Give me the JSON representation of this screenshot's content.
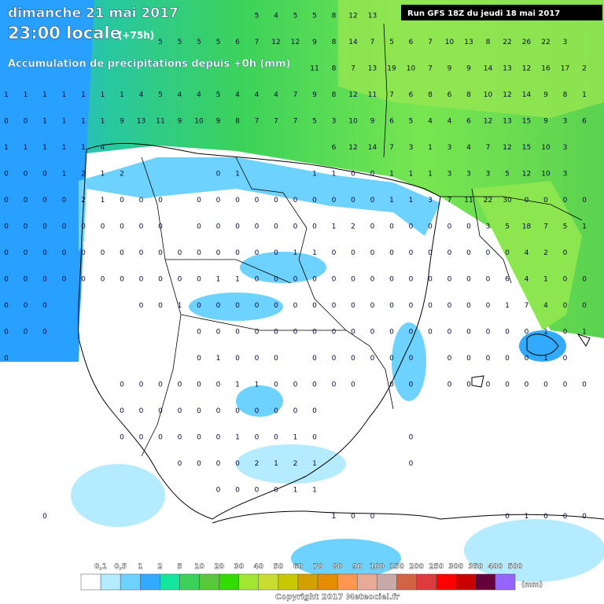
{
  "header": {
    "date": "dimanche 21 mai 2017",
    "time": "23:00 locale",
    "lead": "(+75h)",
    "subtitle": "Accumulation de précipitations depuis +0h (mm)",
    "run": "Run GFS 18Z du jeudi 18 mai 2017"
  },
  "grid_values": [
    [
      null,
      null,
      null,
      null,
      null,
      null,
      null,
      null,
      null,
      null,
      null,
      null,
      null,
      "5",
      "4",
      "5",
      "5",
      "8",
      "12",
      "13",
      null,
      null,
      null,
      null,
      null,
      null,
      null,
      null,
      null,
      null,
      null
    ],
    [
      null,
      null,
      null,
      null,
      null,
      null,
      null,
      null,
      "5",
      "5",
      "5",
      "5",
      "6",
      "7",
      "12",
      "12",
      "9",
      "8",
      "14",
      "7",
      "5",
      "6",
      "7",
      "10",
      "13",
      "8",
      "22",
      "26",
      "22",
      "3",
      null
    ],
    [
      null,
      null,
      null,
      null,
      null,
      null,
      null,
      null,
      null,
      null,
      null,
      null,
      null,
      null,
      null,
      null,
      "11",
      "8",
      "7",
      "13",
      "19",
      "10",
      "7",
      "9",
      "9",
      "14",
      "13",
      "12",
      "16",
      "17",
      "2"
    ],
    [
      "1",
      "1",
      "1",
      "1",
      "1",
      "1",
      "1",
      "4",
      "5",
      "4",
      "4",
      "5",
      "4",
      "4",
      "4",
      "7",
      "9",
      "8",
      "12",
      "11",
      "7",
      "6",
      "8",
      "6",
      "8",
      "10",
      "12",
      "14",
      "9",
      "8",
      "1"
    ],
    [
      "0",
      "0",
      "1",
      "1",
      "1",
      "1",
      "9",
      "13",
      "11",
      "9",
      "10",
      "9",
      "8",
      "7",
      "7",
      "7",
      "5",
      "3",
      "10",
      "9",
      "6",
      "5",
      "4",
      "4",
      "6",
      "12",
      "13",
      "15",
      "9",
      "3",
      "6"
    ],
    [
      "1",
      "1",
      "1",
      "1",
      "1",
      "4",
      null,
      null,
      null,
      null,
      null,
      null,
      null,
      null,
      null,
      null,
      null,
      "6",
      "12",
      "14",
      "7",
      "3",
      "1",
      "3",
      "4",
      "7",
      "12",
      "15",
      "10",
      "3",
      null
    ],
    [
      "0",
      "0",
      "0",
      "1",
      "2",
      "1",
      "2",
      null,
      null,
      null,
      null,
      "0",
      "1",
      null,
      null,
      null,
      "1",
      "1",
      "0",
      "0",
      "1",
      "1",
      "1",
      "3",
      "3",
      "3",
      "5",
      "12",
      "10",
      "3",
      null
    ],
    [
      "0",
      "0",
      "0",
      "0",
      "2",
      "1",
      "0",
      "0",
      "0",
      null,
      "0",
      "0",
      "0",
      "0",
      "0",
      "0",
      "0",
      "0",
      "0",
      "0",
      "1",
      "1",
      "3",
      "7",
      "11",
      "22",
      "30",
      "0",
      "0",
      "0",
      "0"
    ],
    [
      "0",
      "0",
      "0",
      "0",
      "0",
      "0",
      "0",
      "0",
      "0",
      null,
      "0",
      "0",
      "0",
      "0",
      "0",
      "0",
      "0",
      "1",
      "2",
      "0",
      "0",
      "0",
      "0",
      "0",
      "0",
      "3",
      "5",
      "18",
      "7",
      "5",
      "1"
    ],
    [
      "0",
      "0",
      "0",
      "0",
      "0",
      "0",
      "0",
      "0",
      "0",
      "0",
      "0",
      "0",
      "0",
      "0",
      "0",
      "1",
      "1",
      "0",
      "0",
      "0",
      "0",
      "0",
      "0",
      "0",
      "0",
      "0",
      "0",
      "4",
      "2",
      "0",
      null
    ],
    [
      "0",
      "0",
      "0",
      "0",
      "0",
      "0",
      "0",
      "0",
      "0",
      "0",
      "0",
      "1",
      "1",
      "0",
      "0",
      "0",
      "0",
      "0",
      "0",
      "0",
      "0",
      "0",
      "0",
      "0",
      "0",
      "0",
      "6",
      "4",
      "1",
      "0",
      "0"
    ],
    [
      "0",
      "0",
      "0",
      null,
      null,
      null,
      null,
      "0",
      "0",
      "1",
      "0",
      "0",
      "0",
      "0",
      "0",
      "0",
      "0",
      "0",
      "0",
      "0",
      "0",
      "0",
      "0",
      "0",
      "0",
      "0",
      "1",
      "7",
      "4",
      "0",
      "0"
    ],
    [
      "0",
      "0",
      "0",
      null,
      null,
      null,
      null,
      null,
      null,
      null,
      "0",
      "0",
      "0",
      "0",
      "0",
      "0",
      "0",
      "0",
      "0",
      "0",
      "0",
      "0",
      "0",
      "0",
      "0",
      "0",
      "0",
      "0",
      "1",
      "0",
      "1"
    ],
    [
      "0",
      null,
      null,
      null,
      null,
      null,
      null,
      null,
      null,
      null,
      "0",
      "1",
      "0",
      "0",
      "0",
      null,
      "0",
      "0",
      "0",
      "0",
      "0",
      "0",
      null,
      "0",
      "0",
      "0",
      "0",
      "0",
      "1",
      "0",
      null
    ],
    [
      null,
      null,
      null,
      null,
      null,
      null,
      "0",
      "0",
      "0",
      "0",
      "0",
      "0",
      "1",
      "1",
      "0",
      "0",
      "0",
      "0",
      "0",
      null,
      "0",
      "0",
      null,
      "0",
      "0",
      "0",
      "0",
      "0",
      "0",
      "0",
      "0"
    ],
    [
      null,
      null,
      null,
      null,
      null,
      null,
      "0",
      "0",
      "0",
      "0",
      "0",
      "0",
      "0",
      "0",
      "0",
      "0",
      "0",
      null,
      null,
      null,
      null,
      null,
      null,
      null,
      null,
      null,
      null,
      null,
      null,
      null,
      null
    ],
    [
      null,
      null,
      null,
      null,
      null,
      null,
      "0",
      "0",
      "0",
      "0",
      "0",
      "0",
      "1",
      "0",
      "0",
      "1",
      "0",
      null,
      null,
      null,
      null,
      "0",
      null,
      null,
      null,
      null,
      null,
      null,
      null,
      null,
      null
    ],
    [
      null,
      null,
      null,
      null,
      null,
      null,
      null,
      null,
      null,
      "0",
      "0",
      "0",
      "0",
      "2",
      "1",
      "2",
      "1",
      null,
      null,
      null,
      null,
      "0",
      null,
      null,
      null,
      null,
      null,
      null,
      null,
      null,
      null
    ],
    [
      null,
      null,
      null,
      null,
      null,
      null,
      null,
      null,
      null,
      null,
      null,
      "0",
      "0",
      "0",
      "0",
      "1",
      "1",
      null,
      null,
      null,
      null,
      null,
      null,
      null,
      null,
      null,
      null,
      null,
      null,
      null,
      null
    ],
    [
      null,
      null,
      "0",
      null,
      null,
      null,
      null,
      null,
      null,
      null,
      null,
      null,
      null,
      null,
      null,
      null,
      null,
      "1",
      "0",
      "0",
      null,
      null,
      null,
      null,
      null,
      null,
      "0",
      "1",
      "0",
      "0",
      "0"
    ]
  ],
  "legend": {
    "labels": [
      "0,1",
      "0,5",
      "1",
      "2",
      "5",
      "10",
      "20",
      "30",
      "40",
      "50",
      "60",
      "70",
      "80",
      "90",
      "100",
      "150",
      "200",
      "250",
      "300",
      "350",
      "400",
      "500"
    ],
    "colors": [
      "#ffffff",
      "#b4ebff",
      "#6ed2ff",
      "#32aaff",
      "#14e6a0",
      "#3cd25a",
      "#5ac83c",
      "#32dc00",
      "#a0e632",
      "#c8dc32",
      "#c8c800",
      "#d2a000",
      "#e68c00",
      "#ff9650",
      "#e6aa96",
      "#c8aaaa",
      "#d26446",
      "#dc3c3c",
      "#ff0000",
      "#c80000",
      "#64003c",
      "#9664ff"
    ],
    "unit": "(mm)"
  },
  "footer": {
    "copyright": "Copyright 2017 Meteociel.fr"
  }
}
